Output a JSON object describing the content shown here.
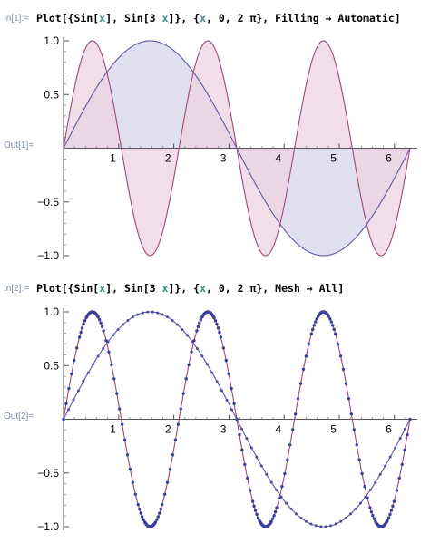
{
  "cells": [
    {
      "in_label": "In[1]:=",
      "out_label": "Out[1]=",
      "code": {
        "prefix": "Plot[{Sin[",
        "v1": "x",
        "mid1": "], Sin[3 ",
        "v2": "x",
        "mid2": "]}, {",
        "v3": "x",
        "suffix": ", 0, 2 π}, Filling → Automatic]"
      }
    },
    {
      "in_label": "In[2]:=",
      "out_label": "Out[2]=",
      "code": {
        "prefix": "Plot[{Sin[",
        "v1": "x",
        "mid1": "], Sin[3 ",
        "v2": "x",
        "mid2": "]}, {",
        "v3": "x",
        "suffix": ", 0, 2 π}, Mesh → All]"
      }
    }
  ],
  "chart_data": [
    {
      "type": "area",
      "x": {
        "min": 0,
        "max": 6.2832
      },
      "ylim": [
        -1,
        1
      ],
      "xticks": [
        "1",
        "2",
        "3",
        "4",
        "5",
        "6"
      ],
      "yticks": [
        "1.0",
        "0.5",
        "-0.5",
        "-1.0"
      ],
      "xtick_values": [
        1,
        2,
        3,
        4,
        5,
        6
      ],
      "ytick_values": [
        1.0,
        0.5,
        -0.5,
        -1.0
      ],
      "series": [
        {
          "function": "sin(x)",
          "stroke": "#5e5aa8",
          "fill": "#d7d6ec"
        },
        {
          "function": "sin(3x)",
          "stroke": "#9c4a7a",
          "fill": "#ecd3e0"
        }
      ],
      "overlap_fill": "#c9b6d8",
      "filling": "Automatic"
    },
    {
      "type": "line",
      "x": {
        "min": 0,
        "max": 6.2832
      },
      "ylim": [
        -1,
        1
      ],
      "xticks": [
        "1",
        "2",
        "3",
        "4",
        "5",
        "6"
      ],
      "yticks": [
        "1.0",
        "0.5",
        "-0.5",
        "-1.0"
      ],
      "xtick_values": [
        1,
        2,
        3,
        4,
        5,
        6
      ],
      "ytick_values": [
        1.0,
        0.5,
        -0.5,
        -1.0
      ],
      "series": [
        {
          "function": "sin(x)",
          "stroke": "#5e5aa8",
          "mesh_color": "#4a4aa0"
        },
        {
          "function": "sin(3x)",
          "stroke": "#9c4a7a",
          "mesh_color": "#3b3f9c"
        }
      ],
      "mesh": "All"
    }
  ]
}
